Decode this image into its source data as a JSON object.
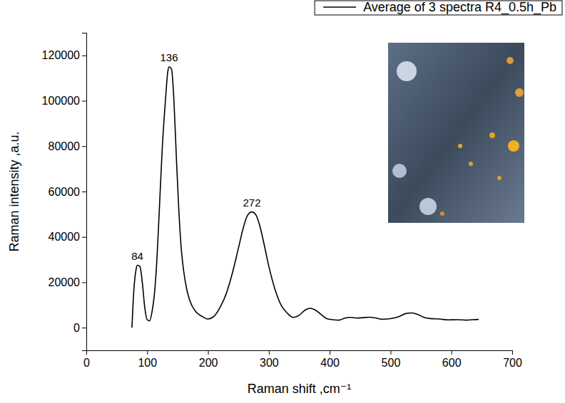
{
  "chart_data": {
    "type": "line",
    "x_label": "Raman shift ,cm⁻¹",
    "y_label": "Raman intensity ,a.u.",
    "xlim": [
      0,
      700
    ],
    "xticks": [
      0,
      100,
      200,
      300,
      400,
      500,
      600,
      700
    ],
    "ylim": [
      -10000,
      130000
    ],
    "yticks": [
      0,
      20000,
      40000,
      60000,
      80000,
      100000,
      120000
    ],
    "grid": false,
    "legend": "top-right",
    "x": [
      75,
      78,
      82,
      84,
      88,
      92,
      96,
      100,
      104,
      108,
      112,
      116,
      120,
      125,
      130,
      134,
      136,
      140,
      144,
      148,
      152,
      156,
      160,
      165,
      170,
      180,
      190,
      200,
      210,
      220,
      230,
      240,
      250,
      258,
      265,
      272,
      278,
      285,
      292,
      300,
      310,
      320,
      330,
      340,
      350,
      360,
      368,
      375,
      385,
      395,
      405,
      415,
      425,
      435,
      445,
      455,
      465,
      475,
      485,
      495,
      505,
      515,
      525,
      535,
      545,
      555,
      565,
      580,
      595,
      610,
      625,
      635,
      645
    ],
    "series": [
      {
        "name": "Average of 3 spectra R4_0.5h_Pb",
        "color": "#000000",
        "line_style": "solid",
        "values": [
          0,
          16000,
          26000,
          27500,
          27000,
          20000,
          9000,
          3500,
          3000,
          7000,
          15000,
          30000,
          52000,
          80000,
          100000,
          113000,
          115000,
          114000,
          100000,
          75000,
          52000,
          35000,
          25000,
          17000,
          12000,
          7000,
          5000,
          3800,
          5000,
          9000,
          15000,
          24000,
          35000,
          44000,
          49500,
          51000,
          50000,
          45000,
          37000,
          27000,
          17000,
          10000,
          6500,
          4500,
          5500,
          7800,
          8500,
          8000,
          6000,
          4000,
          3500,
          3300,
          4200,
          4500,
          4200,
          4400,
          4600,
          4300,
          3700,
          3800,
          4200,
          5000,
          6200,
          6500,
          5800,
          4500,
          4000,
          3800,
          3400,
          3500,
          3300,
          3500,
          3600
        ]
      }
    ],
    "annotations": [
      {
        "x": 84,
        "y": 27500,
        "label": "84"
      },
      {
        "x": 136,
        "y": 115000,
        "label": "136"
      },
      {
        "x": 272,
        "y": 51000,
        "label": "272"
      }
    ]
  }
}
